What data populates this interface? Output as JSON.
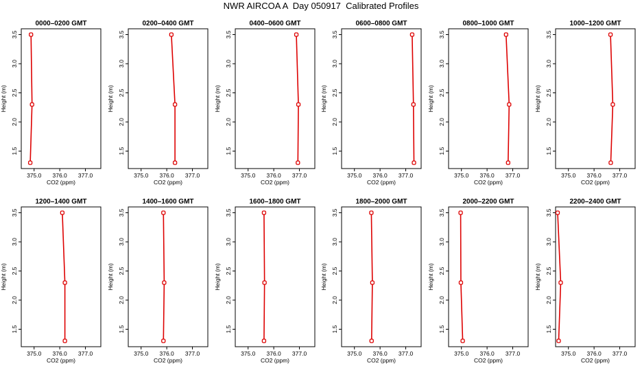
{
  "title": "NWR AIRCOA A  Day 050917  Calibrated Profiles",
  "colors": {
    "series": "#dd0000",
    "axis": "#000000",
    "background": "#ffffff"
  },
  "chart_data": [
    {
      "type": "line",
      "title": "0000–0200 GMT",
      "xlabel": "CO2 (ppm)",
      "ylabel": "Height (m)",
      "xlim": [
        374.5,
        377.6
      ],
      "ylim": [
        1.2,
        3.6
      ],
      "xticks": [
        "375.0",
        "376.0",
        "377.0"
      ],
      "yticks": [
        "1.5",
        "2.0",
        "2.5",
        "3.0",
        "3.5"
      ],
      "x": [
        374.85,
        374.92,
        374.88
      ],
      "y": [
        1.3,
        2.3,
        3.5
      ]
    },
    {
      "type": "line",
      "title": "0200–0400 GMT",
      "xlabel": "CO2 (ppm)",
      "ylabel": "Height (m)",
      "xlim": [
        374.5,
        377.6
      ],
      "ylim": [
        1.2,
        3.6
      ],
      "xticks": [
        "375.0",
        "376.0",
        "377.0"
      ],
      "yticks": [
        "1.5",
        "2.0",
        "2.5",
        "3.0",
        "3.5"
      ],
      "x": [
        376.32,
        376.32,
        376.18
      ],
      "y": [
        1.3,
        2.3,
        3.5
      ]
    },
    {
      "type": "line",
      "title": "0400–0600 GMT",
      "xlabel": "CO2 (ppm)",
      "ylabel": "Height (m)",
      "xlim": [
        374.5,
        377.6
      ],
      "ylim": [
        1.2,
        3.6
      ],
      "xticks": [
        "375.0",
        "376.0",
        "377.0"
      ],
      "yticks": [
        "1.5",
        "2.0",
        "2.5",
        "3.0",
        "3.5"
      ],
      "x": [
        376.94,
        376.96,
        376.88
      ],
      "y": [
        1.3,
        2.3,
        3.5
      ]
    },
    {
      "type": "line",
      "title": "0600–0800 GMT",
      "xlabel": "CO2 (ppm)",
      "ylabel": "Height (m)",
      "xlim": [
        374.5,
        377.6
      ],
      "ylim": [
        1.2,
        3.6
      ],
      "xticks": [
        "375.0",
        "376.0",
        "377.0"
      ],
      "yticks": [
        "1.5",
        "2.0",
        "2.5",
        "3.0",
        "3.5"
      ],
      "x": [
        377.32,
        377.3,
        377.25
      ],
      "y": [
        1.3,
        2.3,
        3.5
      ]
    },
    {
      "type": "line",
      "title": "0800–1000 GMT",
      "xlabel": "CO2 (ppm)",
      "ylabel": "Height (m)",
      "xlim": [
        374.5,
        377.6
      ],
      "ylim": [
        1.2,
        3.6
      ],
      "xticks": [
        "375.0",
        "376.0",
        "377.0"
      ],
      "yticks": [
        "1.5",
        "2.0",
        "2.5",
        "3.0",
        "3.5"
      ],
      "x": [
        376.82,
        376.86,
        376.74
      ],
      "y": [
        1.3,
        2.3,
        3.5
      ]
    },
    {
      "type": "line",
      "title": "1000–1200 GMT",
      "xlabel": "CO2 (ppm)",
      "ylabel": "Height (m)",
      "xlim": [
        374.5,
        377.6
      ],
      "ylim": [
        1.2,
        3.6
      ],
      "xticks": [
        "375.0",
        "376.0",
        "377.0"
      ],
      "yticks": [
        "1.5",
        "2.0",
        "2.5",
        "3.0",
        "3.5"
      ],
      "x": [
        376.65,
        376.73,
        376.64
      ],
      "y": [
        1.3,
        2.3,
        3.5
      ]
    },
    {
      "type": "line",
      "title": "1200–1400 GMT",
      "xlabel": "CO2 (ppm)",
      "ylabel": "Height (m)",
      "xlim": [
        374.5,
        377.6
      ],
      "ylim": [
        1.2,
        3.6
      ],
      "xticks": [
        "375.0",
        "376.0",
        "377.0"
      ],
      "yticks": [
        "1.5",
        "2.0",
        "2.5",
        "3.0",
        "3.5"
      ],
      "x": [
        376.2,
        376.2,
        376.1
      ],
      "y": [
        1.3,
        2.3,
        3.5
      ]
    },
    {
      "type": "line",
      "title": "1400–1600 GMT",
      "xlabel": "CO2 (ppm)",
      "ylabel": "Height (m)",
      "xlim": [
        374.5,
        377.6
      ],
      "ylim": [
        1.2,
        3.6
      ],
      "xticks": [
        "375.0",
        "376.0",
        "377.0"
      ],
      "yticks": [
        "1.5",
        "2.0",
        "2.5",
        "3.0",
        "3.5"
      ],
      "x": [
        375.87,
        375.9,
        375.87
      ],
      "y": [
        1.3,
        2.3,
        3.5
      ]
    },
    {
      "type": "line",
      "title": "1600–1800 GMT",
      "xlabel": "CO2 (ppm)",
      "ylabel": "Height (m)",
      "xlim": [
        374.5,
        377.6
      ],
      "ylim": [
        1.2,
        3.6
      ],
      "xticks": [
        "375.0",
        "376.0",
        "377.0"
      ],
      "yticks": [
        "1.5",
        "2.0",
        "2.5",
        "3.0",
        "3.5"
      ],
      "x": [
        375.62,
        375.64,
        375.62
      ],
      "y": [
        1.3,
        2.3,
        3.5
      ]
    },
    {
      "type": "line",
      "title": "1800–2000 GMT",
      "xlabel": "CO2 (ppm)",
      "ylabel": "Height (m)",
      "xlim": [
        374.5,
        377.6
      ],
      "ylim": [
        1.2,
        3.6
      ],
      "xticks": [
        "375.0",
        "376.0",
        "377.0"
      ],
      "yticks": [
        "1.5",
        "2.0",
        "2.5",
        "3.0",
        "3.5"
      ],
      "x": [
        375.67,
        375.7,
        375.66
      ],
      "y": [
        1.3,
        2.3,
        3.5
      ]
    },
    {
      "type": "line",
      "title": "2000–2200 GMT",
      "xlabel": "CO2 (ppm)",
      "ylabel": "Height (m)",
      "xlim": [
        374.5,
        377.6
      ],
      "ylim": [
        1.2,
        3.6
      ],
      "xticks": [
        "375.0",
        "376.0",
        "377.0"
      ],
      "yticks": [
        "1.5",
        "2.0",
        "2.5",
        "3.0",
        "3.5"
      ],
      "x": [
        375.05,
        374.98,
        374.97
      ],
      "y": [
        1.3,
        2.3,
        3.5
      ]
    },
    {
      "type": "line",
      "title": "2200–2400 GMT",
      "xlabel": "CO2 (ppm)",
      "ylabel": "Height (m)",
      "xlim": [
        374.5,
        377.6
      ],
      "ylim": [
        1.2,
        3.6
      ],
      "xticks": [
        "375.0",
        "376.0",
        "377.0"
      ],
      "yticks": [
        "1.5",
        "2.0",
        "2.5",
        "3.0",
        "3.5"
      ],
      "x": [
        374.62,
        374.7,
        374.58
      ],
      "y": [
        1.3,
        2.3,
        3.5
      ]
    }
  ]
}
